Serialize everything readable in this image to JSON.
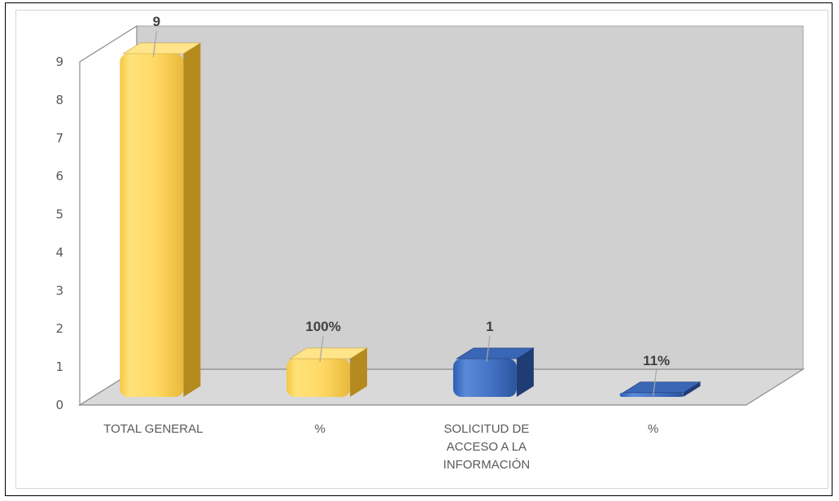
{
  "chart_data": {
    "type": "bar",
    "title": "",
    "xlabel": "",
    "ylabel": "",
    "ylim": [
      0,
      9
    ],
    "yticks": [
      0,
      1,
      2,
      3,
      4,
      5,
      6,
      7,
      8,
      9
    ],
    "categories": [
      [
        "TOTAL GENERAL"
      ],
      [
        "%"
      ],
      [
        "SOLICITUD DE",
        "ACCESO A LA",
        "INFORMACIÓN"
      ],
      [
        "%"
      ]
    ],
    "values": [
      9,
      1,
      1,
      0.11
    ],
    "data_labels": [
      "9",
      "100%",
      "1",
      "11%"
    ],
    "bar_colors": [
      "#FFD966",
      "#FFD966",
      "#4472C4",
      "#4472C4"
    ],
    "grid": false,
    "three_d": true
  }
}
